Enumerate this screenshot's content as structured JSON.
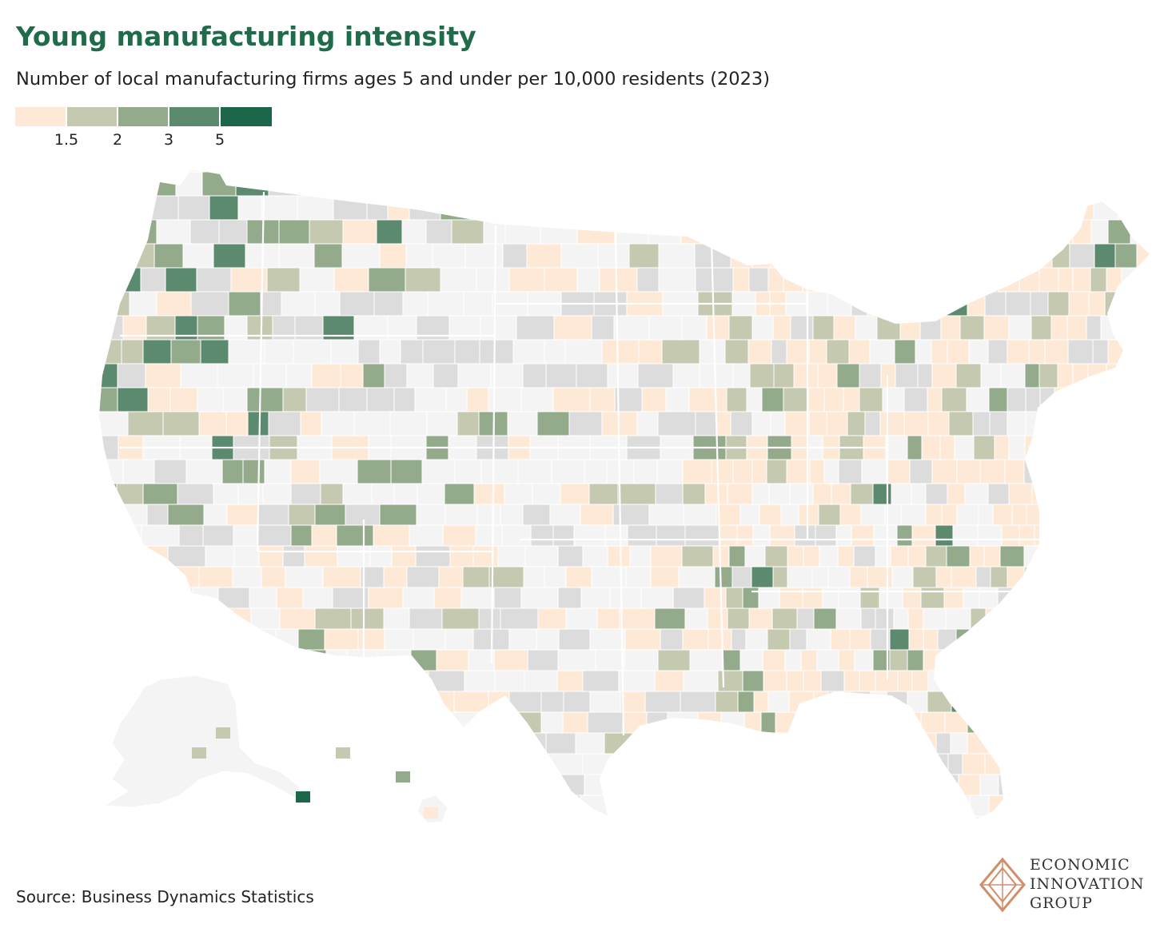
{
  "title": "Young manufacturing intensity",
  "subtitle": "Number of local manufacturing firms ages 5 and under per 10,000 residents (2023)",
  "legend": {
    "bins": [
      {
        "color": "#fde9d6",
        "label": "< 1.5"
      },
      {
        "color": "#c5c9b0",
        "label": "1.5 - 2"
      },
      {
        "color": "#93ab8b",
        "label": "2 - 3"
      },
      {
        "color": "#5b8a6e",
        "label": "3 - 5"
      },
      {
        "color": "#1c6649",
        "label": "5+"
      }
    ],
    "ticks": [
      "1.5",
      "2",
      "3",
      "5"
    ]
  },
  "colors": {
    "nodata": "#f4f4f4",
    "zero": "#dcdcdc",
    "border": "#ffffff",
    "title": "#1f6b4a",
    "logo": "#d18e6b"
  },
  "source": "Source: Business Dynamics Statistics",
  "logo": {
    "lines": [
      "ECONOMIC",
      "INNOVATION",
      "GROUP"
    ]
  }
}
